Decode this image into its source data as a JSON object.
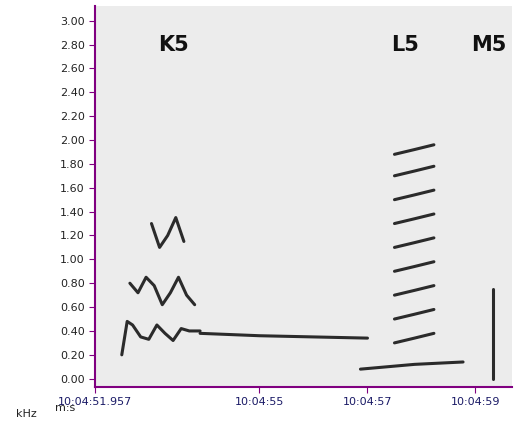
{
  "chart_data": {
    "type": "spectrogram",
    "xlabel": "m:s",
    "ylabel": "kHz",
    "xlim": [
      51.957,
      59.68
    ],
    "xticks": [
      {
        "value": 51.957,
        "label": "10:04:51.957"
      },
      {
        "value": 55,
        "label": "10:04:55"
      },
      {
        "value": 57,
        "label": "10:04:57"
      },
      {
        "value": 59,
        "label": "10:04:59"
      }
    ],
    "ylim": [
      -0.07,
      3.12
    ],
    "yticks": [
      {
        "value": 0,
        "label": "0.00"
      },
      {
        "value": 0.2,
        "label": "0.20"
      },
      {
        "value": 0.4,
        "label": "0.40"
      },
      {
        "value": 0.6,
        "label": "0.60"
      },
      {
        "value": 0.8,
        "label": "0.80"
      },
      {
        "value": 1.0,
        "label": "1.00"
      },
      {
        "value": 1.2,
        "label": "1.20"
      },
      {
        "value": 1.4,
        "label": "1.40"
      },
      {
        "value": 1.6,
        "label": "1.60"
      },
      {
        "value": 1.8,
        "label": "1.80"
      },
      {
        "value": 2.0,
        "label": "2.00"
      },
      {
        "value": 2.2,
        "label": "2.20"
      },
      {
        "value": 2.4,
        "label": "2.40"
      },
      {
        "value": 2.6,
        "label": "2.60"
      },
      {
        "value": 2.8,
        "label": "2.80"
      },
      {
        "value": 3.0,
        "label": "3.00"
      }
    ],
    "color": "#2b2b2b",
    "annotations": [
      {
        "text": "K5",
        "x": 53.4,
        "y": 2.8
      },
      {
        "text": "L5",
        "x": 57.7,
        "y": 2.8
      },
      {
        "text": "M5",
        "x": 59.25,
        "y": 2.8
      }
    ],
    "series": [
      {
        "x": [
          52.45,
          52.55,
          52.65,
          52.8,
          52.95,
          53.1,
          53.25,
          53.4,
          53.55,
          53.7,
          53.9
        ],
        "values": [
          0.2,
          0.48,
          0.45,
          0.35,
          0.33,
          0.45,
          0.38,
          0.32,
          0.42,
          0.4,
          0.4
        ]
      },
      {
        "x": [
          53.9,
          55.0,
          56.0,
          57.0
        ],
        "values": [
          0.38,
          0.36,
          0.35,
          0.34
        ]
      },
      {
        "x": [
          52.6,
          52.75,
          52.9,
          53.05,
          53.2,
          53.35,
          53.5,
          53.65,
          53.8
        ],
        "values": [
          0.8,
          0.72,
          0.85,
          0.78,
          0.62,
          0.72,
          0.85,
          0.7,
          0.62
        ]
      },
      {
        "x": [
          53.0,
          53.15,
          53.3,
          53.45,
          53.6
        ],
        "values": [
          1.3,
          1.1,
          1.2,
          1.35,
          1.15
        ]
      },
      {
        "x": [
          56.87,
          57.87,
          58.77
        ],
        "values": [
          0.08,
          0.12,
          0.14
        ]
      },
      {
        "x": [
          57.5,
          57.87,
          58.23
        ],
        "values": [
          0.3,
          0.34,
          0.38
        ]
      },
      {
        "x": [
          57.5,
          57.87,
          58.23
        ],
        "values": [
          0.5,
          0.54,
          0.58
        ]
      },
      {
        "x": [
          57.5,
          57.87,
          58.23
        ],
        "values": [
          0.7,
          0.74,
          0.78
        ]
      },
      {
        "x": [
          57.5,
          57.87,
          58.23
        ],
        "values": [
          0.9,
          0.94,
          0.98
        ]
      },
      {
        "x": [
          57.5,
          57.87,
          58.23
        ],
        "values": [
          1.1,
          1.14,
          1.18
        ]
      },
      {
        "x": [
          57.5,
          57.87,
          58.23
        ],
        "values": [
          1.3,
          1.34,
          1.38
        ]
      },
      {
        "x": [
          57.5,
          57.87,
          58.23
        ],
        "values": [
          1.5,
          1.54,
          1.58
        ]
      },
      {
        "x": [
          57.5,
          57.87,
          58.23
        ],
        "values": [
          1.7,
          1.74,
          1.78
        ]
      },
      {
        "x": [
          57.5,
          57.87,
          58.23
        ],
        "values": [
          1.88,
          1.92,
          1.96
        ]
      },
      {
        "x": [
          59.32,
          59.32
        ],
        "values": [
          0.0,
          0.75
        ]
      }
    ]
  }
}
